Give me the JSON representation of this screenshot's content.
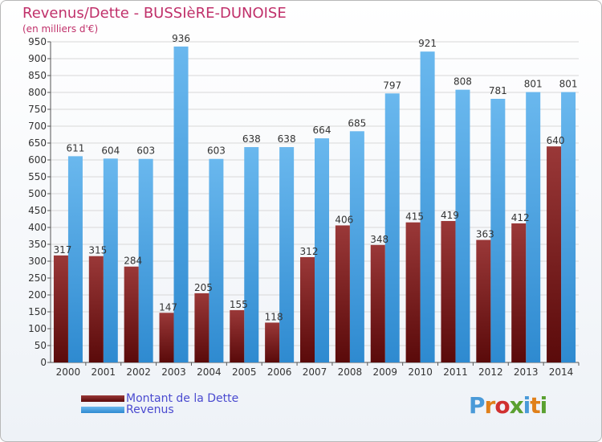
{
  "title": "Revenus/Dette - BUSSIèRE-DUNOISE",
  "subtitle": "(en milliers d'€)",
  "logo": {
    "text": "Proxiti",
    "colors": [
      "#4a9ad8",
      "#e0801a",
      "#d03030",
      "#5aa030",
      "#4a9ad8",
      "#e0801a",
      "#5aa030"
    ]
  },
  "legend": {
    "dette": "Montant de la Dette",
    "revenus": "Revenus"
  },
  "colors": {
    "dette_top": "#9a3838",
    "dette_bottom": "#5a0a0a",
    "revenus_top": "#6ab8ee",
    "revenus_bottom": "#2e8ad0",
    "grid": "#d8d8d8",
    "axis": "#555555"
  },
  "chart_data": {
    "type": "bar",
    "title": "Revenus/Dette - BUSSIèRE-DUNOISE",
    "ylabel": "(en milliers d'€)",
    "xlabel": "",
    "ylim": [
      0,
      950
    ],
    "ytick_step": 50,
    "grid": true,
    "legend_position": "bottom-left",
    "categories": [
      "2000",
      "2001",
      "2002",
      "2003",
      "2004",
      "2005",
      "2006",
      "2007",
      "2008",
      "2009",
      "2010",
      "2011",
      "2012",
      "2013",
      "2014"
    ],
    "series": [
      {
        "name": "Montant de la Dette",
        "values": [
          317,
          315,
          284,
          147,
          205,
          155,
          118,
          312,
          406,
          348,
          415,
          419,
          363,
          412,
          640
        ]
      },
      {
        "name": "Revenus",
        "values": [
          611,
          604,
          603,
          936,
          603,
          638,
          638,
          664,
          685,
          797,
          921,
          808,
          781,
          801,
          801
        ]
      }
    ]
  }
}
